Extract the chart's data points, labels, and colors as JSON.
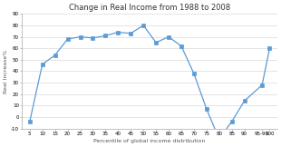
{
  "title": "Change in Real Income from 1988 to 2008",
  "xlabel": "Percentile of global income distribution",
  "ylabel": "Real Increase%",
  "x_labels": [
    "5",
    "10",
    "15",
    "20",
    "25",
    "30",
    "35",
    "40",
    "45",
    "50",
    "55",
    "60",
    "65",
    "70",
    "75",
    "80",
    "85",
    "90",
    "95-99",
    "100"
  ],
  "x_values": [
    5,
    10,
    15,
    20,
    25,
    30,
    35,
    40,
    45,
    50,
    55,
    60,
    65,
    70,
    75,
    80,
    85,
    90,
    97,
    100
  ],
  "y_values": [
    -4,
    46,
    54,
    68,
    70,
    69,
    71,
    74,
    73,
    80,
    65,
    70,
    62,
    38,
    7,
    -19,
    -4,
    14,
    28,
    60
  ],
  "ylim": [
    -10,
    90
  ],
  "yticks": [
    -10,
    0,
    10,
    20,
    30,
    40,
    50,
    60,
    70,
    80,
    90
  ],
  "xlim": [
    2,
    103
  ],
  "line_color": "#5B9BD5",
  "marker": "s",
  "marker_size": 2.5,
  "marker_edge_width": 0.5,
  "line_width": 0.9,
  "bg_color": "#ffffff",
  "title_fontsize": 6.0,
  "label_fontsize": 4.5,
  "tick_fontsize": 4.0,
  "grid_color": "#d0d0d0",
  "spine_color": "#aaaaaa"
}
